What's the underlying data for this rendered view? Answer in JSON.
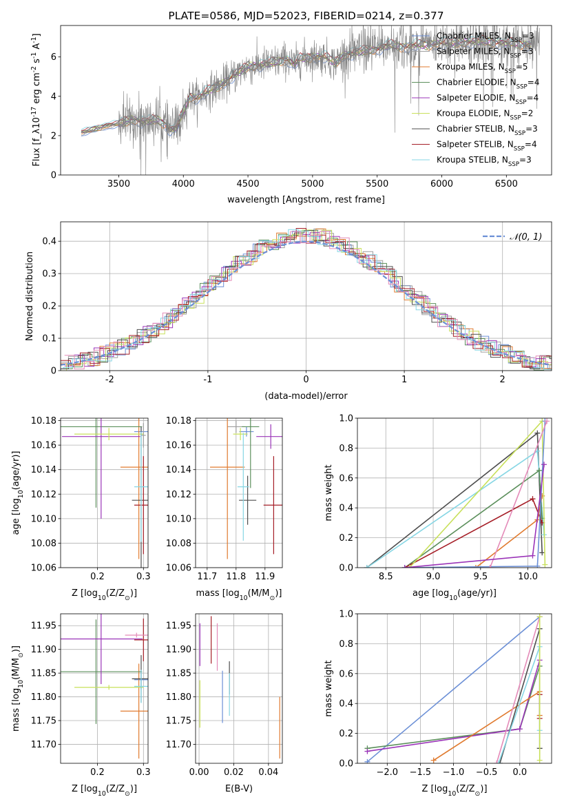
{
  "colors": {
    "chabrier_miles": "#6b8fd6",
    "salpeter_miles": "#9e9e9e",
    "kroupa_miles": "#e07a2e",
    "chabrier_elodie": "#5b8f5b",
    "salpeter_elodie": "#9a33b8",
    "kroupa_elodie": "#c8e05a",
    "chabrier_stelib": "#4d4d4d",
    "salpeter_stelib": "#a51d26",
    "kroupa_stelib": "#86d6e4",
    "pink": "#e48ab8",
    "normal": "#6b8fd6",
    "grid": "#b0b0b0"
  },
  "chart_data": [
    {
      "id": "spectrum",
      "type": "line",
      "title": "PLATE=0586, MJD=52023, FIBERID=0214, z=0.377",
      "xlabel": "wavelength [Angstrom, rest frame]",
      "ylabel": "Flux [f_λ 10^-17 erg cm^-2 s^-1 A^-1]",
      "xlim": [
        3050,
        6850
      ],
      "ylim": [
        0,
        7.6
      ],
      "xticks": [
        3500,
        4000,
        4500,
        5000,
        5500,
        6000,
        6500
      ],
      "yticks": [
        0,
        2,
        4,
        6
      ],
      "grid": false,
      "legend_position": "upper-right",
      "legend": [
        {
          "label": "Chabrier MILES, N_SSP=3",
          "color_key": "chabrier_miles"
        },
        {
          "label": "Salpeter MILES, N_SSP=3",
          "color_key": "salpeter_miles"
        },
        {
          "label": "Kroupa MILES, N_SSP=5",
          "color_key": "kroupa_miles"
        },
        {
          "label": "Chabrier ELODIE, N_SSP=4",
          "color_key": "chabrier_elodie"
        },
        {
          "label": "Salpeter ELODIE, N_SSP=4",
          "color_key": "salpeter_elodie"
        },
        {
          "label": "Kroupa ELODIE, N_SSP=2",
          "color_key": "kroupa_elodie"
        },
        {
          "label": "Chabrier STELIB, N_SSP=3",
          "color_key": "chabrier_stelib"
        },
        {
          "label": "Salpeter STELIB, N_SSP=4",
          "color_key": "salpeter_stelib"
        },
        {
          "label": "Kroupa STELIB, N_SSP=3",
          "color_key": "kroupa_stelib"
        }
      ],
      "continuum": [
        [
          3210,
          2.15
        ],
        [
          3240,
          2.2
        ],
        [
          3300,
          2.3
        ],
        [
          3400,
          2.5
        ],
        [
          3500,
          2.6
        ],
        [
          3600,
          2.8
        ],
        [
          3700,
          2.7
        ],
        [
          3800,
          2.8
        ],
        [
          3850,
          2.6
        ],
        [
          3900,
          2.3
        ],
        [
          3950,
          2.4
        ],
        [
          4000,
          3.2
        ],
        [
          4050,
          4.0
        ],
        [
          4100,
          3.9
        ],
        [
          4200,
          4.3
        ],
        [
          4300,
          4.6
        ],
        [
          4400,
          5.1
        ],
        [
          4500,
          5.5
        ],
        [
          4600,
          5.6
        ],
        [
          4700,
          5.7
        ],
        [
          4800,
          5.9
        ],
        [
          4860,
          5.6
        ],
        [
          4900,
          5.9
        ],
        [
          5000,
          6.0
        ],
        [
          5100,
          6.0
        ],
        [
          5175,
          5.7
        ],
        [
          5250,
          6.1
        ],
        [
          5400,
          6.3
        ],
        [
          5500,
          6.4
        ],
        [
          5600,
          6.6
        ],
        [
          5700,
          6.5
        ],
        [
          5800,
          6.6
        ],
        [
          5900,
          6.6
        ],
        [
          6000,
          6.7
        ],
        [
          6100,
          6.7
        ],
        [
          6300,
          6.8
        ],
        [
          6500,
          6.7
        ],
        [
          6700,
          6.6
        ]
      ]
    },
    {
      "id": "residuals",
      "type": "line",
      "xlabel": "(data-model)/error",
      "ylabel": "Normed distribution",
      "xlim": [
        -2.5,
        2.5
      ],
      "ylim": [
        0,
        0.46
      ],
      "xticks": [
        -2,
        -1,
        0,
        1,
        2
      ],
      "yticks": [
        0.0,
        0.1,
        0.2,
        0.3,
        0.4
      ],
      "grid": true,
      "legend_position": "upper-right",
      "legend": [
        {
          "label": "𝒩(0, 1)",
          "color_key": "normal",
          "dashed": true
        }
      ],
      "bin_width": 0.1
    },
    {
      "id": "age_vs_Z",
      "type": "scatter",
      "xlabel": "Z [log10(Z/Z⊙)]",
      "ylabel": "age [log10(age/yr)]",
      "xlim": [
        0.12,
        0.31
      ],
      "ylim": [
        10.06,
        10.182
      ],
      "xticks": [
        "0.2",
        "0.3"
      ],
      "yticks": [
        "10.06",
        "10.08",
        "10.10",
        "10.12",
        "10.14",
        "10.16",
        "10.18"
      ],
      "grid": true,
      "points": [
        {
          "color_key": "chabrier_miles",
          "x": 0.295,
          "xerr": 0.015,
          "y": 10.171,
          "yerr": 0.004
        },
        {
          "color_key": "salpeter_miles",
          "x": 0.3,
          "xerr": 0.005,
          "y": 10.168,
          "yerr": 0.01
        },
        {
          "color_key": "kroupa_miles",
          "x": 0.29,
          "xerr": 0.04,
          "y": 10.142,
          "yerr": 0.075
        },
        {
          "color_key": "chabrier_elodie",
          "x": 0.197,
          "xerr": 0.1,
          "y": 10.175,
          "yerr": 0.066
        },
        {
          "color_key": "salpeter_elodie",
          "x": 0.208,
          "xerr": 0.085,
          "y": 10.167,
          "yerr": 0.067
        },
        {
          "color_key": "kroupa_elodie",
          "x": 0.225,
          "xerr": 0.075,
          "y": 10.169,
          "yerr": 0.005
        },
        {
          "color_key": "chabrier_stelib",
          "x": 0.295,
          "xerr": 0.02,
          "y": 10.115,
          "yerr": 0.06
        },
        {
          "color_key": "salpeter_stelib",
          "x": 0.3,
          "xerr": 0.02,
          "y": 10.111,
          "yerr": 0.04
        },
        {
          "color_key": "kroupa_stelib",
          "x": 0.295,
          "xerr": 0.015,
          "y": 10.126,
          "yerr": 0.045
        }
      ]
    },
    {
      "id": "age_vs_mass",
      "type": "scatter",
      "xlabel": "mass [log10(M/M⊙)]",
      "ylabel": "",
      "xlim": [
        11.66,
        11.96
      ],
      "ylim": [
        10.06,
        10.182
      ],
      "xticks": [
        "11.7",
        "11.8",
        "11.9"
      ],
      "yticks": [
        "10.06",
        "10.08",
        "10.10",
        "10.12",
        "10.14",
        "10.16",
        "10.18"
      ],
      "grid": true,
      "points": [
        {
          "color_key": "chabrier_miles",
          "x": 11.836,
          "xerr": 0.025,
          "y": 10.171,
          "yerr": 0.004
        },
        {
          "color_key": "salpeter_miles",
          "x": 11.8,
          "xerr": 0.03,
          "y": 10.175,
          "yerr": 0.005
        },
        {
          "color_key": "kroupa_miles",
          "x": 11.77,
          "xerr": 0.06,
          "y": 10.142,
          "yerr": 0.075
        },
        {
          "color_key": "chabrier_elodie",
          "x": 11.85,
          "xerr": 0.03,
          "y": 10.175,
          "yerr": 0.05
        },
        {
          "color_key": "salpeter_elodie",
          "x": 11.92,
          "xerr": 0.05,
          "y": 10.167,
          "yerr": 0.01
        },
        {
          "color_key": "kroupa_elodie",
          "x": 11.815,
          "xerr": 0.025,
          "y": 10.169,
          "yerr": 0.005
        },
        {
          "color_key": "chabrier_stelib",
          "x": 11.84,
          "xerr": 0.03,
          "y": 10.115,
          "yerr": 0.02
        },
        {
          "color_key": "salpeter_stelib",
          "x": 11.93,
          "xerr": 0.035,
          "y": 10.111,
          "yerr": 0.04
        },
        {
          "color_key": "kroupa_stelib",
          "x": 11.825,
          "xerr": 0.02,
          "y": 10.126,
          "yerr": 0.044
        }
      ]
    },
    {
      "id": "mass_weight_vs_age",
      "type": "line",
      "xlabel": "age [log10(age/yr)]",
      "ylabel": "mass weight",
      "xlim": [
        8.2,
        10.25
      ],
      "ylim": [
        0,
        1.0
      ],
      "xticks": [
        "8.5",
        "9.0",
        "9.5",
        "10.0"
      ],
      "yticks": [
        "0.0",
        "0.2",
        "0.4",
        "0.6",
        "0.8",
        "1.0"
      ],
      "grid": true,
      "series": [
        {
          "color_key": "chabrier_stelib",
          "x": [
            8.3,
            10.1,
            10.15
          ],
          "y": [
            0.0,
            0.9,
            0.1
          ]
        },
        {
          "color_key": "kroupa_stelib",
          "x": [
            8.3,
            10.1,
            10.17
          ],
          "y": [
            0.0,
            0.78,
            0.22
          ]
        },
        {
          "color_key": "chabrier_elodie",
          "x": [
            8.7,
            10.12,
            10.15
          ],
          "y": [
            0.0,
            0.65,
            0.33
          ]
        },
        {
          "color_key": "salpeter_stelib",
          "x": [
            8.7,
            10.05,
            10.15
          ],
          "y": [
            0.0,
            0.46,
            0.3
          ]
        },
        {
          "color_key": "kroupa_miles",
          "x": [
            9.45,
            10.1,
            10.15
          ],
          "y": [
            0.0,
            0.32,
            0.48
          ]
        },
        {
          "color_key": "kroupa_elodie",
          "x": [
            8.75,
            10.15,
            10.18
          ],
          "y": [
            0.0,
            0.98,
            0.02
          ]
        },
        {
          "color_key": "chabrier_miles",
          "x": [
            8.7,
            10.1,
            10.18
          ],
          "y": [
            0.0,
            0.01,
            0.98
          ]
        },
        {
          "color_key": "pink",
          "x": [
            9.6,
            10.2
          ],
          "y": [
            0.0,
            0.98
          ]
        },
        {
          "color_key": "salpeter_elodie",
          "x": [
            8.7,
            10.05,
            10.17
          ],
          "y": [
            0.0,
            0.08,
            0.69
          ]
        }
      ]
    },
    {
      "id": "mass_vs_Z",
      "type": "scatter",
      "xlabel": "Z [log10(Z/Z⊙)]",
      "ylabel": "mass [log10(M/M⊙)]",
      "xlim": [
        0.12,
        0.31
      ],
      "ylim": [
        11.66,
        11.975
      ],
      "xticks": [
        "0.2",
        "0.3"
      ],
      "yticks": [
        "11.70",
        "11.75",
        "11.80",
        "11.85",
        "11.90",
        "11.95"
      ],
      "grid": true,
      "points": [
        {
          "color_key": "chabrier_miles",
          "x": 0.295,
          "xerr": 0.015,
          "y": 11.836,
          "yerr": 0.02
        },
        {
          "color_key": "kroupa_miles",
          "x": 0.29,
          "xerr": 0.04,
          "y": 11.77,
          "yerr": 0.1
        },
        {
          "color_key": "chabrier_elodie",
          "x": 0.197,
          "xerr": 0.1,
          "y": 11.853,
          "yerr": 0.11
        },
        {
          "color_key": "salpeter_elodie",
          "x": 0.208,
          "xerr": 0.09,
          "y": 11.922,
          "yerr": 0.095
        },
        {
          "color_key": "kroupa_elodie",
          "x": 0.225,
          "xerr": 0.075,
          "y": 11.82,
          "yerr": 0.005
        },
        {
          "color_key": "chabrier_stelib",
          "x": 0.295,
          "xerr": 0.02,
          "y": 11.838,
          "yerr": 0.05
        },
        {
          "color_key": "salpeter_stelib",
          "x": 0.3,
          "xerr": 0.02,
          "y": 11.92,
          "yerr": 0.045
        },
        {
          "color_key": "kroupa_stelib",
          "x": 0.295,
          "xerr": 0.015,
          "y": 11.822,
          "yerr": 0.035
        },
        {
          "color_key": "pink",
          "x": 0.285,
          "xerr": 0.025,
          "y": 11.93,
          "yerr": 0.005
        }
      ]
    },
    {
      "id": "mass_vs_ebv",
      "type": "scatter",
      "xlabel": "E(B-V)",
      "ylabel": "",
      "xlim": [
        -0.002,
        0.048
      ],
      "ylim": [
        11.66,
        11.975
      ],
      "xticks": [
        "0.00",
        "0.02",
        "0.04"
      ],
      "yticks": [
        "11.70",
        "11.75",
        "11.80",
        "11.85",
        "11.90",
        "11.95"
      ],
      "grid": true,
      "points": [
        {
          "color_key": "salpeter_elodie",
          "x": 0.0005,
          "y": 11.91,
          "yerr": 0.045
        },
        {
          "color_key": "kroupa_elodie",
          "x": 0.0005,
          "y": 11.785,
          "yerr": 0.05
        },
        {
          "color_key": "salpeter_stelib",
          "x": 0.007,
          "y": 11.92,
          "yerr": 0.05
        },
        {
          "color_key": "pink",
          "x": 0.0105,
          "y": 11.905,
          "yerr": 0.05
        },
        {
          "color_key": "chabrier_miles",
          "x": 0.0135,
          "y": 11.8,
          "yerr": 0.055
        },
        {
          "color_key": "chabrier_stelib",
          "x": 0.0175,
          "y": 11.84,
          "yerr": 0.035
        },
        {
          "color_key": "kroupa_stelib",
          "x": 0.0175,
          "y": 11.805,
          "yerr": 0.045
        },
        {
          "color_key": "kroupa_miles",
          "x": 0.0465,
          "y": 11.735,
          "yerr": 0.065
        }
      ]
    },
    {
      "id": "mass_weight_vs_Z",
      "type": "line",
      "xlabel": "Z [log10(Z/Z⊙)]",
      "ylabel": "mass weight",
      "xlim": [
        -2.45,
        0.48
      ],
      "ylim": [
        0,
        1.0
      ],
      "xticks": [
        "−2.0",
        "−1.5",
        "−1.0",
        "−0.5",
        "0.0"
      ],
      "yticks": [
        "0.0",
        "0.2",
        "0.4",
        "0.6",
        "0.8",
        "1.0"
      ],
      "grid": true,
      "series": [
        {
          "color_key": "chabrier_miles",
          "x": [
            -2.3,
            0.3
          ],
          "y": [
            0.01,
            0.98
          ]
        },
        {
          "color_key": "chabrier_elodie",
          "x": [
            -2.3,
            0.0,
            0.3
          ],
          "y": [
            0.1,
            0.23,
            0.65
          ]
        },
        {
          "color_key": "salpeter_elodie",
          "x": [
            -2.3,
            0.0,
            0.3
          ],
          "y": [
            0.08,
            0.23,
            0.69
          ]
        },
        {
          "color_key": "kroupa_miles",
          "x": [
            -1.3,
            0.3,
            0.3
          ],
          "y": [
            0.02,
            0.48,
            0.32
          ]
        },
        {
          "color_key": "pink",
          "x": [
            -0.35,
            0.3
          ],
          "y": [
            0.0,
            0.98
          ]
        },
        {
          "color_key": "chabrier_stelib",
          "x": [
            -0.3,
            0.3,
            0.3
          ],
          "y": [
            0.0,
            0.9,
            0.1
          ]
        },
        {
          "color_key": "kroupa_stelib",
          "x": [
            -0.32,
            0.3,
            0.3
          ],
          "y": [
            0.0,
            0.78,
            0.22
          ]
        },
        {
          "color_key": "salpeter_stelib",
          "x": [
            0.3,
            0.3
          ],
          "y": [
            0.3,
            0.46
          ]
        },
        {
          "color_key": "kroupa_elodie",
          "x": [
            0.3,
            0.3
          ],
          "y": [
            0.02,
            0.98
          ]
        }
      ]
    }
  ]
}
